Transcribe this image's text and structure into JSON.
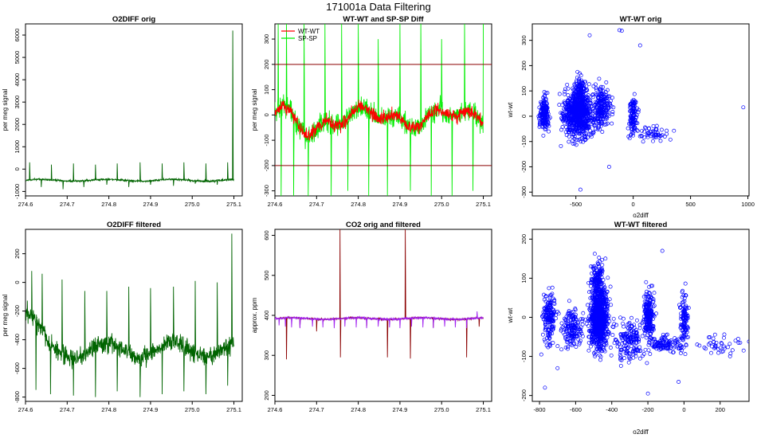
{
  "title": "171001a   Data Filtering",
  "colors": {
    "green": "#006400",
    "red": "#ff0000",
    "lime": "#00ee00",
    "darkred": "#8b0000",
    "purple": "#a020f0",
    "blue": "#0000ff"
  },
  "chart_data": [
    {
      "id": "p1",
      "type": "line",
      "title": "O2DIFF orig",
      "xlabel": "",
      "ylabel": "per meg signal",
      "xlim": [
        274.6,
        275.12
      ],
      "ylim": [
        -1200,
        6500
      ],
      "xticks": [
        274.6,
        274.7,
        274.8,
        274.9,
        275.0,
        275.1
      ],
      "xtick_labels": [
        "274.6",
        "274.7",
        "274.8",
        "274.9",
        "275.0",
        "275.1"
      ],
      "yticks": [
        -1000,
        0,
        1000,
        2000,
        3000,
        4000,
        5000,
        6000
      ],
      "ytick_labels": [
        "-1000",
        "0",
        "1000",
        "2000",
        "3000",
        "4000",
        "5000",
        "6000"
      ],
      "series": [
        {
          "name": "O2DIFF",
          "color": "#006400",
          "baseline": -500,
          "noise": 30,
          "wander": 40,
          "spikes": [
            [
              274.61,
              300
            ],
            [
              274.638,
              -800
            ],
            [
              274.662,
              200
            ],
            [
              274.69,
              -900
            ],
            [
              274.715,
              250
            ],
            [
              274.74,
              -800
            ],
            [
              274.768,
              200
            ],
            [
              274.795,
              -700
            ],
            [
              274.82,
              250
            ],
            [
              274.848,
              -800
            ],
            [
              274.875,
              300
            ],
            [
              274.9,
              -700
            ],
            [
              274.928,
              250
            ],
            [
              274.955,
              -750
            ],
            [
              274.98,
              300
            ],
            [
              275.007,
              -650
            ],
            [
              275.033,
              250
            ],
            [
              275.06,
              -700
            ],
            [
              275.085,
              300
            ],
            [
              275.097,
              6200
            ]
          ]
        }
      ],
      "hlines": []
    },
    {
      "id": "p2",
      "type": "line",
      "title": "WT-WT and SP-SP Diff",
      "xlabel": "",
      "ylabel": "per meg signal",
      "xlim": [
        274.6,
        275.12
      ],
      "ylim": [
        -320,
        360
      ],
      "xticks": [
        274.6,
        274.7,
        274.8,
        274.9,
        275.0,
        275.1
      ],
      "xtick_labels": [
        "274.6",
        "274.7",
        "274.8",
        "274.9",
        "275.0",
        "275.1"
      ],
      "yticks": [
        -300,
        -200,
        -100,
        0,
        100,
        200,
        300
      ],
      "ytick_labels": [
        "-300",
        "-200",
        "-100",
        "0",
        "100",
        "200",
        "300"
      ],
      "legend": {
        "position": "top-left",
        "entries": [
          {
            "label": "WT-WT",
            "color": "#ff0000"
          },
          {
            "label": "SP-SP",
            "color": "#00ee00"
          }
        ]
      },
      "series": [
        {
          "name": "SP-SP",
          "color": "#00ee00",
          "wave": true,
          "noise": 30,
          "spikes": [
            [
              274.608,
              360
            ],
            [
              274.615,
              -320
            ],
            [
              274.628,
              360
            ],
            [
              274.645,
              -320
            ],
            [
              274.67,
              360
            ],
            [
              274.68,
              -320
            ],
            [
              274.72,
              360
            ],
            [
              274.735,
              -320
            ],
            [
              274.76,
              360
            ],
            [
              274.775,
              -300
            ],
            [
              274.8,
              360
            ],
            [
              274.825,
              -320
            ],
            [
              274.848,
              300
            ],
            [
              274.87,
              -320
            ],
            [
              274.9,
              360
            ],
            [
              274.925,
              -300
            ],
            [
              274.95,
              360
            ],
            [
              274.975,
              -320
            ],
            [
              275.0,
              300
            ],
            [
              275.025,
              -320
            ],
            [
              275.055,
              360
            ],
            [
              275.075,
              -300
            ],
            [
              275.1,
              360
            ]
          ]
        },
        {
          "name": "WT-WT",
          "color": "#ff0000",
          "wave": true,
          "noise": 18,
          "spikes": []
        }
      ],
      "hlines": [
        {
          "y": 200,
          "color": "#8b0000"
        },
        {
          "y": -200,
          "color": "#8b0000"
        }
      ]
    },
    {
      "id": "p3",
      "type": "scatter",
      "title": "WT-WT orig",
      "xlabel": "o2diff",
      "ylabel": "wt-wt",
      "xlim": [
        -880,
        1010
      ],
      "ylim": [
        -315,
        365
      ],
      "xticks": [
        -500,
        0,
        500,
        1000
      ],
      "xtick_labels": [
        "-500",
        "0",
        "500",
        "1000"
      ],
      "yticks": [
        -300,
        -200,
        -100,
        0,
        100,
        200,
        300
      ],
      "ytick_labels": [
        "-300",
        "-200",
        "-100",
        "0",
        "100",
        "200",
        "300"
      ],
      "color": "#0000ff",
      "clusters": [
        {
          "cx": -775,
          "cy": 5,
          "sx": 30,
          "sy": 55,
          "n": 170
        },
        {
          "cx": -480,
          "cy": 5,
          "sx": 90,
          "sy": 65,
          "n": 750
        },
        {
          "cx": -470,
          "cy": 90,
          "sx": 35,
          "sy": 50,
          "n": 120
        },
        {
          "cx": -270,
          "cy": 30,
          "sx": 55,
          "sy": 60,
          "n": 210
        },
        {
          "cx": 0,
          "cy": 10,
          "sx": 25,
          "sy": 50,
          "n": 110
        },
        {
          "cx": 150,
          "cy": -70,
          "sx": 120,
          "sy": 20,
          "n": 60
        }
      ],
      "outliers": [
        [
          -380,
          320
        ],
        [
          -120,
          340
        ],
        [
          -100,
          338
        ],
        [
          60,
          280
        ],
        [
          960,
          35
        ],
        [
          -460,
          -290
        ],
        [
          -210,
          -200
        ]
      ]
    },
    {
      "id": "p4",
      "type": "line",
      "title": "O2DIFF filtered",
      "xlabel": "",
      "ylabel": "per meg signal",
      "xlim": [
        274.6,
        275.12
      ],
      "ylim": [
        -830,
        370
      ],
      "xticks": [
        274.6,
        274.7,
        274.8,
        274.9,
        275.0,
        275.1
      ],
      "xtick_labels": [
        "274.6",
        "274.7",
        "274.8",
        "274.9",
        "275.0",
        "275.1"
      ],
      "yticks": [
        -800,
        -600,
        -400,
        -200,
        0,
        200
      ],
      "ytick_labels": [
        "-800",
        "-600",
        "-400",
        "-200",
        "0",
        "200"
      ],
      "series": [
        {
          "name": "O2DIFF",
          "color": "#006400",
          "baseline": -470,
          "noise": 45,
          "wander": 50,
          "early": true,
          "spikes": [
            [
              274.615,
              80
            ],
            [
              274.625,
              -750
            ],
            [
              274.64,
              60
            ],
            [
              274.66,
              -780
            ],
            [
              274.688,
              20
            ],
            [
              274.715,
              -790
            ],
            [
              274.742,
              -60
            ],
            [
              274.768,
              -800
            ],
            [
              274.795,
              -60
            ],
            [
              274.82,
              -760
            ],
            [
              274.848,
              -30
            ],
            [
              274.875,
              -800
            ],
            [
              274.9,
              -40
            ],
            [
              274.928,
              -780
            ],
            [
              274.955,
              -30
            ],
            [
              274.98,
              -760
            ],
            [
              275.007,
              10
            ],
            [
              275.033,
              -780
            ],
            [
              275.06,
              0
            ],
            [
              275.085,
              -720
            ],
            [
              275.095,
              340
            ]
          ]
        }
      ],
      "hlines": []
    },
    {
      "id": "p5",
      "type": "line",
      "title": "CO2 orig and filtered",
      "xlabel": "",
      "ylabel": "approx. ppm",
      "xlim": [
        274.6,
        275.12
      ],
      "ylim": [
        185,
        615
      ],
      "xticks": [
        274.6,
        274.7,
        274.8,
        274.9,
        275.0,
        275.1
      ],
      "xtick_labels": [
        "274.6",
        "274.7",
        "274.8",
        "274.9",
        "275.0",
        "275.1"
      ],
      "yticks": [
        200,
        300,
        400,
        500,
        600
      ],
      "ytick_labels": [
        "200",
        "300",
        "400",
        "500",
        "600"
      ],
      "series": [
        {
          "name": "CO2 orig",
          "color": "#8b0000",
          "baseline": 392,
          "noise": 1.5,
          "wander": 2,
          "spikes": [
            [
              274.628,
              290
            ],
            [
              274.66,
              370
            ],
            [
              274.7,
              360
            ],
            [
              274.756,
              615
            ],
            [
              274.757,
              295
            ],
            [
              274.82,
              372
            ],
            [
              274.87,
              295
            ],
            [
              274.913,
              615
            ],
            [
              274.925,
              292
            ],
            [
              274.98,
              370
            ],
            [
              275.06,
              295
            ],
            [
              275.09,
              372
            ]
          ]
        },
        {
          "name": "CO2 filtered",
          "color": "#a020f0",
          "baseline": 392,
          "noise": 2,
          "wander": 2,
          "spikes": [
            [
              274.61,
              375
            ],
            [
              274.625,
              372
            ],
            [
              274.64,
              370
            ],
            [
              274.66,
              368
            ],
            [
              274.69,
              372
            ],
            [
              274.715,
              370
            ],
            [
              274.742,
              368
            ],
            [
              274.768,
              372
            ],
            [
              274.795,
              370
            ],
            [
              274.82,
              368
            ],
            [
              274.848,
              372
            ],
            [
              274.875,
              370
            ],
            [
              274.9,
              368
            ],
            [
              274.928,
              372
            ],
            [
              274.955,
              370
            ],
            [
              274.98,
              368
            ],
            [
              275.007,
              372
            ],
            [
              275.033,
              370
            ],
            [
              275.06,
              368
            ],
            [
              275.085,
              410
            ]
          ]
        }
      ],
      "hlines": []
    },
    {
      "id": "p6",
      "type": "scatter",
      "title": "WT-WT filtered",
      "xlabel": "o2diff",
      "ylabel": "wt-wt",
      "xlim": [
        -840,
        360
      ],
      "ylim": [
        -215,
        225
      ],
      "xticks": [
        -800,
        -600,
        -400,
        -200,
        0,
        200
      ],
      "xtick_labels": [
        "-800",
        "-600",
        "-400",
        "-200",
        "0",
        "200"
      ],
      "yticks": [
        -200,
        -100,
        0,
        100,
        200
      ],
      "ytick_labels": [
        "-200",
        "-100",
        "0",
        "100",
        "200"
      ],
      "color": "#0000ff",
      "clusters": [
        {
          "cx": -745,
          "cy": 0,
          "sx": 22,
          "sy": 45,
          "n": 170
        },
        {
          "cx": -620,
          "cy": -30,
          "sx": 50,
          "sy": 35,
          "n": 160
        },
        {
          "cx": -470,
          "cy": 0,
          "sx": 35,
          "sy": 55,
          "n": 800
        },
        {
          "cx": -480,
          "cy": 95,
          "sx": 25,
          "sy": 35,
          "n": 140
        },
        {
          "cx": -300,
          "cy": -60,
          "sx": 60,
          "sy": 35,
          "n": 170
        },
        {
          "cx": -195,
          "cy": 5,
          "sx": 20,
          "sy": 40,
          "n": 210
        },
        {
          "cx": -100,
          "cy": -70,
          "sx": 70,
          "sy": 15,
          "n": 110
        },
        {
          "cx": 0,
          "cy": 0,
          "sx": 15,
          "sy": 55,
          "n": 110
        },
        {
          "cx": 200,
          "cy": -70,
          "sx": 100,
          "sy": 20,
          "n": 40
        }
      ],
      "outliers": [
        [
          -770,
          -180
        ],
        [
          -200,
          -195
        ],
        [
          -120,
          170
        ],
        [
          -700,
          -130
        ],
        [
          300,
          -55
        ],
        [
          330,
          -85
        ],
        [
          -30,
          -165
        ],
        [
          -790,
          -95
        ],
        [
          -210,
          90
        ]
      ]
    }
  ]
}
